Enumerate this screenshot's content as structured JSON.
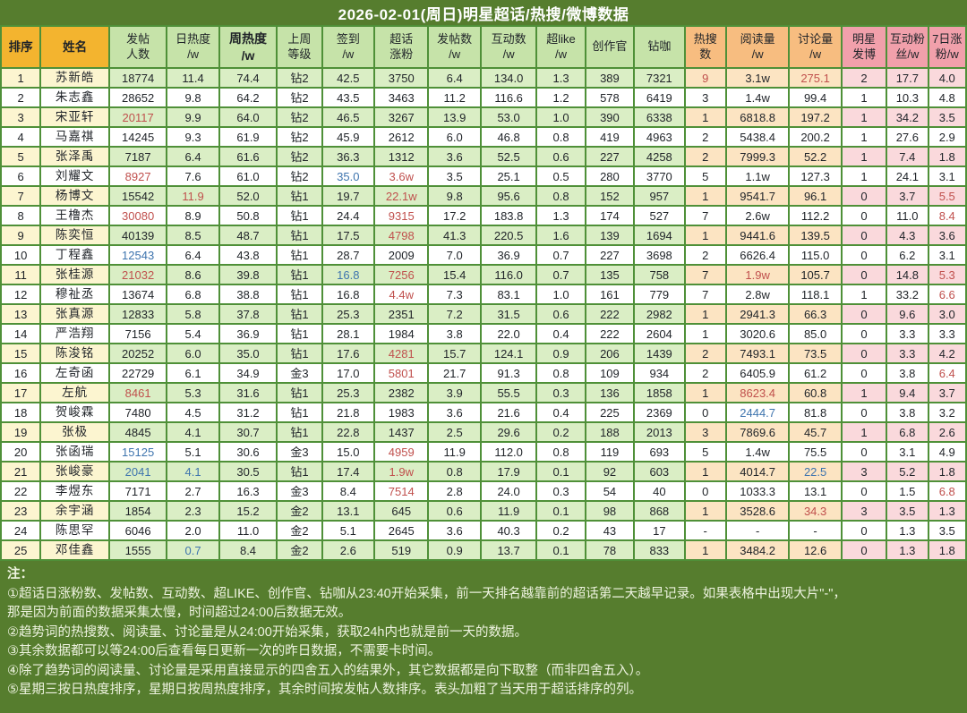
{
  "palette": {
    "background_green": "#567d2e",
    "grid_green": "#4f9038",
    "header_gold": "#f3b42f",
    "header_light_green": "#c6e3a9",
    "header_orange": "#f7bd80",
    "header_pink": "#f1a0ab",
    "odd_row_cream": "#fcf5d0",
    "odd_row_green": "#daeec5",
    "odd_row_orange": "#fce4c2",
    "odd_row_pink": "#fad9dc",
    "highlight_red_text": "#c0504d",
    "highlight_blue_text": "#3e74ae"
  },
  "title": "2026-02-01(周日)明星超话/热搜/微博数据",
  "table": {
    "columns": [
      {
        "key": "rank",
        "label": "排序",
        "group": "gold"
      },
      {
        "key": "name",
        "label": "姓名",
        "group": "gold"
      },
      {
        "key": "posters",
        "label": "发帖\n人数",
        "group": "green"
      },
      {
        "key": "daily-heat",
        "label": "日热度\n/w",
        "group": "green"
      },
      {
        "key": "weekly-heat",
        "label": "周热度\n/w",
        "group": "green",
        "bold": true
      },
      {
        "key": "last-week-level",
        "label": "上周\n等级",
        "group": "green"
      },
      {
        "key": "checkin",
        "label": "签到\n/w",
        "group": "green"
      },
      {
        "key": "supertopic-fan-growth",
        "label": "超话\n涨粉",
        "group": "green"
      },
      {
        "key": "posts",
        "label": "发帖数\n/w",
        "group": "green"
      },
      {
        "key": "interactions",
        "label": "互动数\n/w",
        "group": "green"
      },
      {
        "key": "super-like",
        "label": "超like\n/w",
        "group": "green"
      },
      {
        "key": "creation-officer",
        "label": "创作官",
        "group": "green"
      },
      {
        "key": "diamond",
        "label": "钻咖",
        "group": "green"
      },
      {
        "key": "hot-search-count",
        "label": "热搜\n数",
        "group": "orange"
      },
      {
        "key": "read-volume",
        "label": "阅读量\n/w",
        "group": "orange"
      },
      {
        "key": "discussion-volume",
        "label": "讨论量\n/w",
        "group": "orange"
      },
      {
        "key": "star-posts",
        "label": "明星\n发博",
        "group": "pink"
      },
      {
        "key": "interactive-fans",
        "label": "互动粉\n丝/w",
        "group": "pink"
      },
      {
        "key": "7day-fan-growth",
        "label": "7日涨\n粉/w",
        "group": "pink"
      }
    ],
    "rows": [
      {
        "cells": [
          "1",
          "苏新皓",
          "18774",
          "11.4",
          "74.4",
          "钻2",
          "42.5",
          "3750",
          "6.4",
          "134.0",
          "1.3",
          "389",
          "7321",
          "9",
          "3.1w",
          "275.1",
          "2",
          "17.7",
          "4.0"
        ],
        "colors": {
          "13": "red",
          "15": "red"
        }
      },
      {
        "cells": [
          "2",
          "朱志鑫",
          "28652",
          "9.8",
          "64.2",
          "钻2",
          "43.5",
          "3463",
          "11.2",
          "116.6",
          "1.2",
          "578",
          "6419",
          "3",
          "1.4w",
          "99.4",
          "1",
          "10.3",
          "4.8"
        ],
        "colors": {}
      },
      {
        "cells": [
          "3",
          "宋亚轩",
          "20117",
          "9.9",
          "64.0",
          "钻2",
          "46.5",
          "3267",
          "13.9",
          "53.0",
          "1.0",
          "390",
          "6338",
          "1",
          "6818.8",
          "197.2",
          "1",
          "34.2",
          "3.5"
        ],
        "colors": {
          "2": "red"
        }
      },
      {
        "cells": [
          "4",
          "马嘉祺",
          "14245",
          "9.3",
          "61.9",
          "钻2",
          "45.9",
          "2612",
          "6.0",
          "46.8",
          "0.8",
          "419",
          "4963",
          "2",
          "5438.4",
          "200.2",
          "1",
          "27.6",
          "2.9"
        ],
        "colors": {}
      },
      {
        "cells": [
          "5",
          "张泽禹",
          "7187",
          "6.4",
          "61.6",
          "钻2",
          "36.3",
          "1312",
          "3.6",
          "52.5",
          "0.6",
          "227",
          "4258",
          "2",
          "7999.3",
          "52.2",
          "1",
          "7.4",
          "1.8"
        ],
        "colors": {}
      },
      {
        "cells": [
          "6",
          "刘耀文",
          "8927",
          "7.6",
          "61.0",
          "钻2",
          "35.0",
          "3.6w",
          "3.5",
          "25.1",
          "0.5",
          "280",
          "3770",
          "5",
          "1.1w",
          "127.3",
          "1",
          "24.1",
          "3.1"
        ],
        "colors": {
          "2": "red",
          "6": "blue",
          "7": "red"
        }
      },
      {
        "cells": [
          "7",
          "杨博文",
          "15542",
          "11.9",
          "52.0",
          "钻1",
          "19.7",
          "22.1w",
          "9.8",
          "95.6",
          "0.8",
          "152",
          "957",
          "1",
          "9541.7",
          "96.1",
          "0",
          "3.7",
          "5.5"
        ],
        "colors": {
          "3": "red",
          "7": "red",
          "18": "red"
        }
      },
      {
        "cells": [
          "8",
          "王橹杰",
          "30080",
          "8.9",
          "50.8",
          "钻1",
          "24.4",
          "9315",
          "17.2",
          "183.8",
          "1.3",
          "174",
          "527",
          "7",
          "2.6w",
          "112.2",
          "0",
          "11.0",
          "8.4"
        ],
        "colors": {
          "2": "red",
          "7": "red",
          "18": "red"
        }
      },
      {
        "cells": [
          "9",
          "陈奕恒",
          "40139",
          "8.5",
          "48.7",
          "钻1",
          "17.5",
          "4798",
          "41.3",
          "220.5",
          "1.6",
          "139",
          "1694",
          "1",
          "9441.6",
          "139.5",
          "0",
          "4.3",
          "3.6"
        ],
        "colors": {
          "7": "red"
        }
      },
      {
        "cells": [
          "10",
          "丁程鑫",
          "12543",
          "6.4",
          "43.8",
          "钻1",
          "28.7",
          "2009",
          "7.0",
          "36.9",
          "0.7",
          "227",
          "3698",
          "2",
          "6626.4",
          "115.0",
          "0",
          "6.2",
          "3.1"
        ],
        "colors": {
          "2": "blue"
        }
      },
      {
        "cells": [
          "11",
          "张桂源",
          "21032",
          "8.6",
          "39.8",
          "钻1",
          "16.8",
          "7256",
          "15.4",
          "116.0",
          "0.7",
          "135",
          "758",
          "7",
          "1.9w",
          "105.7",
          "0",
          "14.8",
          "5.3"
        ],
        "colors": {
          "2": "red",
          "6": "blue",
          "7": "red",
          "14": "red",
          "18": "red"
        }
      },
      {
        "cells": [
          "12",
          "穆祉丞",
          "13674",
          "6.8",
          "38.8",
          "钻1",
          "16.8",
          "4.4w",
          "7.3",
          "83.1",
          "1.0",
          "161",
          "779",
          "7",
          "2.8w",
          "118.1",
          "1",
          "33.2",
          "6.6"
        ],
        "colors": {
          "7": "red",
          "18": "red"
        }
      },
      {
        "cells": [
          "13",
          "张真源",
          "12833",
          "5.8",
          "37.8",
          "钻1",
          "25.3",
          "2351",
          "7.2",
          "31.5",
          "0.6",
          "222",
          "2982",
          "1",
          "2941.3",
          "66.3",
          "0",
          "9.6",
          "3.0"
        ],
        "colors": {}
      },
      {
        "cells": [
          "14",
          "严浩翔",
          "7156",
          "5.4",
          "36.9",
          "钻1",
          "28.1",
          "1984",
          "3.8",
          "22.0",
          "0.4",
          "222",
          "2604",
          "1",
          "3020.6",
          "85.0",
          "0",
          "3.3",
          "3.3"
        ],
        "colors": {}
      },
      {
        "cells": [
          "15",
          "陈浚铭",
          "20252",
          "6.0",
          "35.0",
          "钻1",
          "17.6",
          "4281",
          "15.7",
          "124.1",
          "0.9",
          "206",
          "1439",
          "2",
          "7493.1",
          "73.5",
          "0",
          "3.3",
          "4.2"
        ],
        "colors": {
          "7": "red"
        }
      },
      {
        "cells": [
          "16",
          "左奇函",
          "22729",
          "6.1",
          "34.9",
          "金3",
          "17.0",
          "5801",
          "21.7",
          "91.3",
          "0.8",
          "109",
          "934",
          "2",
          "6405.9",
          "61.2",
          "0",
          "3.8",
          "6.4"
        ],
        "colors": {
          "7": "red",
          "18": "red"
        }
      },
      {
        "cells": [
          "17",
          "左航",
          "8461",
          "5.3",
          "31.6",
          "钻1",
          "25.3",
          "2382",
          "3.9",
          "55.5",
          "0.3",
          "136",
          "1858",
          "1",
          "8623.4",
          "60.8",
          "1",
          "9.4",
          "3.7"
        ],
        "colors": {
          "2": "red",
          "14": "red"
        }
      },
      {
        "cells": [
          "18",
          "贺峻霖",
          "7480",
          "4.5",
          "31.2",
          "钻1",
          "21.8",
          "1983",
          "3.6",
          "21.6",
          "0.4",
          "225",
          "2369",
          "0",
          "2444.7",
          "81.8",
          "0",
          "3.8",
          "3.2"
        ],
        "colors": {
          "14": "blue"
        }
      },
      {
        "cells": [
          "19",
          "张极",
          "4845",
          "4.1",
          "30.7",
          "钻1",
          "22.8",
          "1437",
          "2.5",
          "29.6",
          "0.2",
          "188",
          "2013",
          "3",
          "7869.6",
          "45.7",
          "1",
          "6.8",
          "2.6"
        ],
        "colors": {}
      },
      {
        "cells": [
          "20",
          "张函瑞",
          "15125",
          "5.1",
          "30.6",
          "金3",
          "15.0",
          "4959",
          "11.9",
          "112.0",
          "0.8",
          "119",
          "693",
          "5",
          "1.4w",
          "75.5",
          "0",
          "3.1",
          "4.9"
        ],
        "colors": {
          "2": "blue",
          "7": "red"
        }
      },
      {
        "cells": [
          "21",
          "张峻豪",
          "2041",
          "4.1",
          "30.5",
          "钻1",
          "17.4",
          "1.9w",
          "0.8",
          "17.9",
          "0.1",
          "92",
          "603",
          "1",
          "4014.7",
          "22.5",
          "3",
          "5.2",
          "1.8"
        ],
        "colors": {
          "2": "blue",
          "3": "blue",
          "7": "red",
          "15": "blue"
        }
      },
      {
        "cells": [
          "22",
          "李煜东",
          "7171",
          "2.7",
          "16.3",
          "金3",
          "8.4",
          "7514",
          "2.8",
          "24.0",
          "0.3",
          "54",
          "40",
          "0",
          "1033.3",
          "13.1",
          "0",
          "1.5",
          "6.8"
        ],
        "colors": {
          "7": "red",
          "18": "red"
        }
      },
      {
        "cells": [
          "23",
          "余宇涵",
          "1854",
          "2.3",
          "15.2",
          "金2",
          "13.1",
          "645",
          "0.6",
          "11.9",
          "0.1",
          "98",
          "868",
          "1",
          "3528.6",
          "34.3",
          "3",
          "3.5",
          "1.3"
        ],
        "colors": {
          "15": "red"
        }
      },
      {
        "cells": [
          "24",
          "陈思罕",
          "6046",
          "2.0",
          "11.0",
          "金2",
          "5.1",
          "2645",
          "3.6",
          "40.3",
          "0.2",
          "43",
          "17",
          "-",
          "-",
          "-",
          "0",
          "1.3",
          "3.5"
        ],
        "colors": {}
      },
      {
        "cells": [
          "25",
          "邓佳鑫",
          "1555",
          "0.7",
          "8.4",
          "金2",
          "2.6",
          "519",
          "0.9",
          "13.7",
          "0.1",
          "78",
          "833",
          "1",
          "3484.2",
          "12.6",
          "0",
          "1.3",
          "1.8"
        ],
        "colors": {
          "3": "blue"
        }
      }
    ]
  },
  "notes": {
    "heading": "注：",
    "lines": [
      "①超话日涨粉数、发帖数、互动数、超LIKE、创作官、钻咖从23:40开始采集，前一天排名越靠前的超话第二天越早记录。如果表格中出现大片\"-\"，",
      "那是因为前面的数据采集太慢，时间超过24:00后数据无效。",
      "②趋势词的热搜数、阅读量、讨论量是从24:00开始采集，获取24h内也就是前一天的数据。",
      "③其余数据都可以等24:00后查看每日更新一次的昨日数据，不需要卡时间。",
      "④除了趋势词的阅读量、讨论量是采用直接显示的四舍五入的结果外，其它数据都是向下取整（而非四舍五入）。",
      "⑤星期三按日热度排序，星期日按周热度排序，其余时间按发帖人数排序。表头加粗了当天用于超话排序的列。"
    ]
  }
}
